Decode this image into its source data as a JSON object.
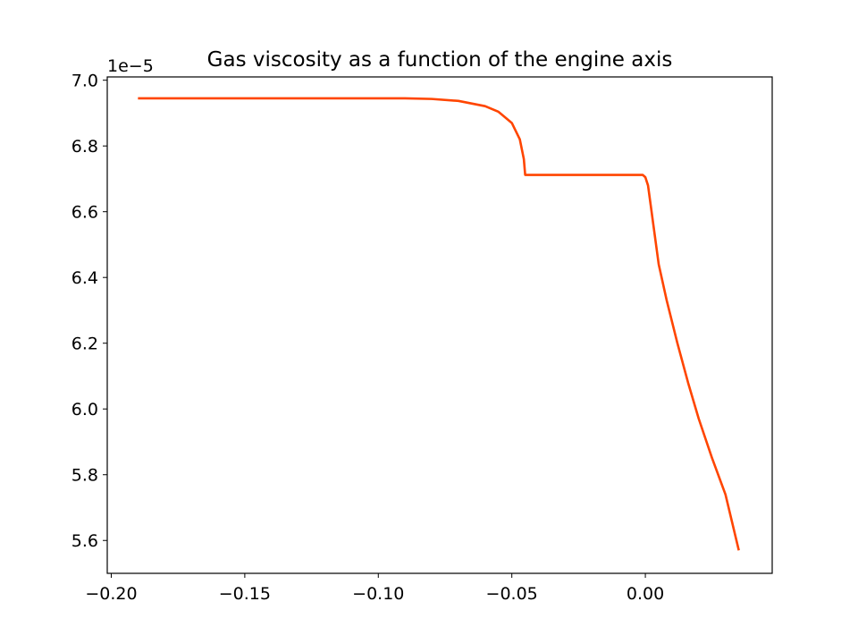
{
  "chart_data": {
    "type": "line",
    "title": "Gas viscosity as a function of the engine axis",
    "xlabel": "",
    "ylabel": "",
    "y_offset_label": "1e−5",
    "xlim": [
      -0.2015,
      0.0475
    ],
    "ylim": [
      5.5,
      7.01
    ],
    "x_ticks": [
      -0.2,
      -0.15,
      -0.1,
      -0.05,
      0.0
    ],
    "x_tick_labels": [
      "−0.20",
      "−0.15",
      "−0.10",
      "−0.05",
      "0.00"
    ],
    "y_ticks": [
      5.6,
      5.8,
      6.0,
      6.2,
      6.4,
      6.6,
      6.8,
      7.0
    ],
    "y_tick_labels": [
      "5.6",
      "5.8",
      "6.0",
      "6.2",
      "6.4",
      "6.6",
      "6.8",
      "7.0"
    ],
    "grid": false,
    "series": [
      {
        "color": "#ff4500",
        "points": [
          [
            -0.19,
            6.945
          ],
          [
            -0.15,
            6.945
          ],
          [
            -0.12,
            6.945
          ],
          [
            -0.1,
            6.945
          ],
          [
            -0.09,
            6.945
          ],
          [
            -0.08,
            6.943
          ],
          [
            -0.07,
            6.937
          ],
          [
            -0.06,
            6.921
          ],
          [
            -0.055,
            6.904
          ],
          [
            -0.05,
            6.87
          ],
          [
            -0.047,
            6.82
          ],
          [
            -0.0455,
            6.76
          ],
          [
            -0.045,
            6.712
          ],
          [
            -0.04,
            6.712
          ],
          [
            -0.03,
            6.712
          ],
          [
            -0.02,
            6.712
          ],
          [
            -0.01,
            6.712
          ],
          [
            -0.001,
            6.712
          ],
          [
            0.0,
            6.705
          ],
          [
            0.001,
            6.68
          ],
          [
            0.002,
            6.62
          ],
          [
            0.003,
            6.56
          ],
          [
            0.005,
            6.44
          ],
          [
            0.008,
            6.33
          ],
          [
            0.012,
            6.2
          ],
          [
            0.016,
            6.08
          ],
          [
            0.02,
            5.97
          ],
          [
            0.025,
            5.85
          ],
          [
            0.03,
            5.74
          ],
          [
            0.035,
            5.57
          ]
        ]
      }
    ]
  }
}
